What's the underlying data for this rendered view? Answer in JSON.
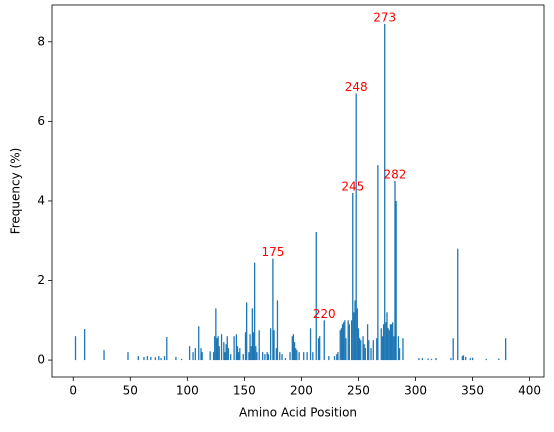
{
  "chart_data": {
    "type": "bar",
    "xlabel": "Amino Acid Position",
    "ylabel": "Frequency (%)",
    "color": "#1f77b4",
    "x": [
      2,
      10,
      27,
      48,
      57,
      62,
      65,
      68,
      72,
      75,
      77,
      80,
      82,
      90,
      95,
      102,
      105,
      107,
      110,
      112,
      113,
      120,
      123,
      124,
      125,
      126,
      127,
      128,
      130,
      132,
      133,
      134,
      135,
      136,
      138,
      141,
      143,
      144,
      145,
      146,
      149,
      151,
      152,
      154,
      155,
      156,
      157,
      158,
      159,
      160,
      161,
      163,
      166,
      168,
      170,
      171,
      173,
      175,
      176,
      178,
      179,
      181,
      183,
      186,
      190,
      192,
      193,
      194,
      195,
      196,
      198,
      202,
      205,
      208,
      210,
      213,
      215,
      216,
      220,
      224,
      229,
      231,
      232,
      234,
      235,
      236,
      237,
      238,
      239,
      241,
      242,
      244,
      245,
      246,
      247,
      248,
      249,
      250,
      251,
      252,
      254,
      255,
      256,
      258,
      259,
      261,
      263,
      266,
      267,
      270,
      271,
      272,
      273,
      274,
      275,
      276,
      277,
      278,
      279,
      280,
      281,
      282,
      283,
      285,
      286,
      289,
      303,
      306,
      311,
      314,
      318,
      331,
      333,
      337,
      341,
      342,
      344,
      348,
      350,
      362,
      373,
      379
    ],
    "values": [
      0.6,
      0.78,
      0.25,
      0.2,
      0.1,
      0.08,
      0.1,
      0.08,
      0.07,
      0.1,
      0.05,
      0.1,
      0.58,
      0.08,
      0.03,
      0.35,
      0.2,
      0.3,
      0.85,
      0.3,
      0.2,
      0.22,
      0.2,
      0.6,
      1.3,
      0.55,
      0.6,
      0.35,
      0.65,
      0.45,
      0.2,
      0.4,
      0.6,
      0.3,
      0.15,
      0.6,
      0.65,
      0.35,
      0.2,
      0.3,
      0.15,
      0.7,
      1.45,
      0.2,
      0.65,
      0.35,
      1.3,
      0.7,
      2.45,
      0.35,
      0.2,
      0.75,
      0.2,
      0.15,
      0.2,
      0.15,
      0.8,
      2.55,
      0.75,
      0.3,
      1.5,
      0.2,
      0.15,
      0.05,
      0.2,
      0.6,
      0.65,
      0.45,
      0.3,
      0.25,
      0.2,
      0.2,
      0.2,
      0.8,
      0.2,
      3.22,
      0.55,
      0.6,
      1.0,
      0.1,
      0.1,
      0.15,
      0.2,
      0.75,
      0.8,
      0.9,
      0.95,
      1.0,
      0.55,
      1.0,
      0.9,
      1.0,
      4.2,
      1.2,
      1.5,
      6.7,
      1.3,
      0.8,
      0.55,
      0.5,
      0.6,
      0.4,
      0.3,
      0.9,
      0.5,
      0.3,
      0.5,
      0.55,
      4.9,
      0.8,
      0.6,
      0.9,
      8.45,
      0.95,
      1.2,
      0.8,
      0.75,
      0.9,
      0.9,
      0.95,
      0.6,
      4.5,
      4.0,
      0.6,
      0.3,
      0.55,
      0.05,
      0.05,
      0.04,
      0.03,
      0.05,
      0.05,
      0.55,
      2.8,
      0.1,
      0.12,
      0.08,
      0.05,
      0.06,
      0.03,
      0.04,
      0.55
    ],
    "annotations": [
      {
        "text": "175",
        "x": 175,
        "y": 2.55
      },
      {
        "text": "220",
        "x": 220,
        "y": 1.0
      },
      {
        "text": "245",
        "x": 245,
        "y": 4.2
      },
      {
        "text": "248",
        "x": 248,
        "y": 6.7
      },
      {
        "text": "273",
        "x": 273,
        "y": 8.45
      },
      {
        "text": "282",
        "x": 282,
        "y": 4.5
      }
    ],
    "annotation_color": "#ff0000",
    "xlim": [
      -18.6,
      412.6
    ],
    "ylim": [
      -0.425,
      8.925
    ],
    "xticks": [
      0,
      50,
      100,
      150,
      200,
      250,
      300,
      350,
      400
    ],
    "yticks": [
      0,
      2,
      4,
      6,
      8
    ]
  }
}
